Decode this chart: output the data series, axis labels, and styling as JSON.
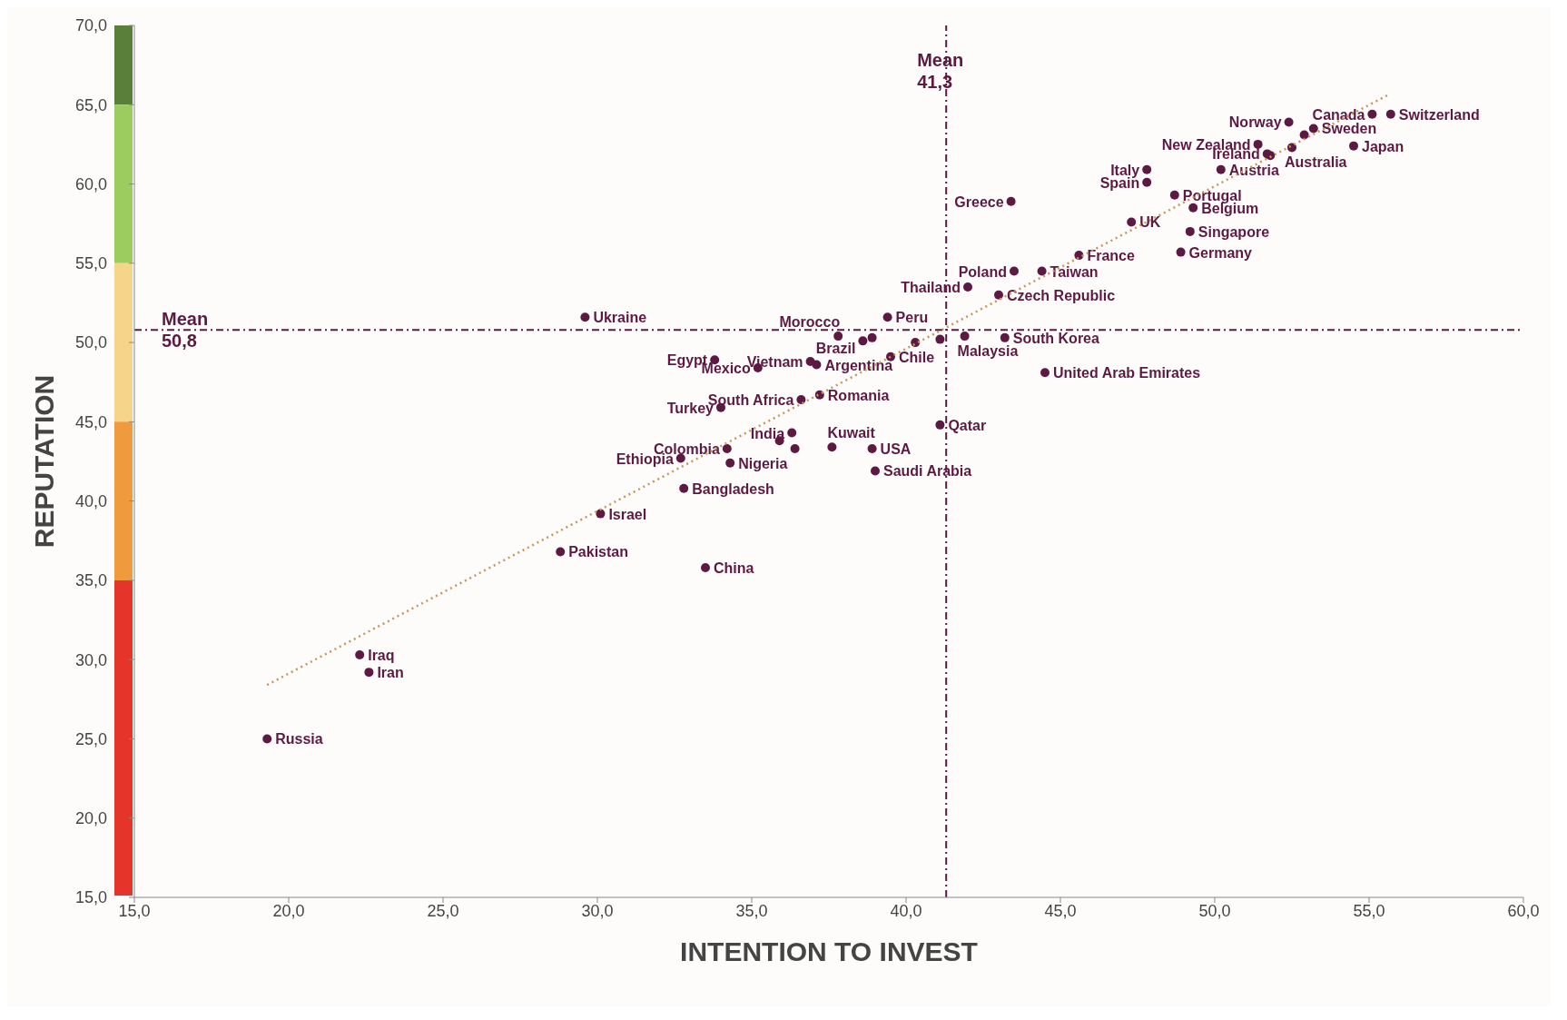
{
  "chart_data": {
    "type": "scatter",
    "xlabel": "INTENTION TO INVEST",
    "ylabel": "REPUTATION",
    "xlim": [
      15,
      60
    ],
    "ylim": [
      15,
      70
    ],
    "xticks": [
      {
        "value": 15,
        "label": "15,0"
      },
      {
        "value": 20,
        "label": "20,0"
      },
      {
        "value": 25,
        "label": "25,0"
      },
      {
        "value": 30,
        "label": "30,0"
      },
      {
        "value": 35,
        "label": "35,0"
      },
      {
        "value": 40,
        "label": "40,0"
      },
      {
        "value": 45,
        "label": "45,0"
      },
      {
        "value": 50,
        "label": "50,0"
      },
      {
        "value": 55,
        "label": "55,0"
      },
      {
        "value": 60,
        "label": "60,0"
      }
    ],
    "yticks": [
      {
        "value": 15,
        "label": "15,0"
      },
      {
        "value": 20,
        "label": "20,0"
      },
      {
        "value": 25,
        "label": "25,0"
      },
      {
        "value": 30,
        "label": "30,0"
      },
      {
        "value": 35,
        "label": "35,0"
      },
      {
        "value": 40,
        "label": "40,0"
      },
      {
        "value": 45,
        "label": "45,0"
      },
      {
        "value": 50,
        "label": "50,0"
      },
      {
        "value": 55,
        "label": "55,0"
      },
      {
        "value": 60,
        "label": "60,0"
      },
      {
        "value": 65,
        "label": "65,0"
      },
      {
        "value": 70,
        "label": "70,0"
      }
    ],
    "grid": false,
    "series": [
      {
        "type": "scatter",
        "color": "#5c1a42",
        "marker": "circle",
        "x": [
          19.3,
          22.3,
          22.6,
          28.8,
          30.1,
          33.5,
          32.8,
          32.7,
          34.2,
          34.3,
          34.0,
          36.6,
          37.2,
          35.9,
          36.3,
          36.4,
          37.6,
          38.9,
          39.0,
          41.1,
          33.8,
          35.2,
          36.9,
          37.1,
          37.8,
          38.6,
          38.9,
          39.4,
          39.5,
          40.3,
          41.1,
          41.9,
          43.2,
          29.6,
          44.5,
          42.0,
          43.0,
          43.5,
          44.4,
          45.6,
          47.3,
          43.4,
          47.8,
          47.8,
          48.7,
          49.3,
          49.2,
          48.9,
          50.2,
          51.4,
          51.7,
          51.8,
          52.5,
          52.4,
          52.9,
          53.2,
          55.1,
          55.7,
          54.5
        ],
        "values": [
          25.0,
          30.3,
          29.2,
          36.8,
          39.2,
          35.8,
          40.8,
          42.7,
          43.3,
          42.4,
          45.9,
          46.4,
          46.7,
          43.8,
          44.3,
          43.3,
          43.4,
          43.3,
          41.9,
          44.8,
          48.9,
          48.4,
          48.8,
          48.6,
          50.4,
          50.1,
          50.3,
          51.6,
          49.1,
          50.0,
          50.2,
          50.4,
          50.3,
          51.6,
          48.1,
          53.5,
          53.0,
          54.5,
          54.5,
          55.5,
          57.6,
          58.9,
          60.9,
          60.1,
          59.3,
          58.5,
          57.0,
          55.7,
          60.9,
          62.5,
          61.9,
          61.8,
          62.3,
          63.9,
          63.1,
          63.5,
          64.4,
          64.4,
          62.4
        ],
        "value_labels": [
          "Russia",
          "Iraq",
          "Iran",
          "Pakistan",
          "Israel",
          "China",
          "Bangladesh",
          "Ethiopia",
          "Colombia",
          "Nigeria",
          "Turkey",
          "South Africa",
          "Romania",
          null,
          "India",
          null,
          "Kuwait",
          "USA",
          "Saudi Arabia",
          "Qatar",
          "Egypt",
          "Mexico",
          "Vietnam",
          "Argentina",
          "Morocco",
          "Brazil",
          null,
          "Peru",
          "Chile",
          null,
          null,
          "Malaysia",
          "South Korea",
          "Ukraine",
          "United Arab Emirates",
          "Thailand",
          "Czech Republic",
          "Poland",
          "Taiwan",
          "France",
          "UK",
          "Greece",
          "Italy",
          "Spain",
          "Portugal",
          "Belgium",
          "Singapore",
          "Germany",
          "Austria",
          "New Zealand",
          "Ireland",
          null,
          "Australia",
          "Norway",
          null,
          "Sweden",
          "Canada",
          "Switzerland",
          "Japan"
        ]
      },
      {
        "type": "line",
        "color": "#c8955a",
        "marker": "none",
        "line_style": "dotted",
        "x": [
          19.3,
          55.6
        ],
        "values": [
          28.4,
          65.6
        ]
      }
    ],
    "ref_lines": [
      {
        "axis": "x",
        "value": 41.3,
        "label": "Mean\n41,3",
        "color": "#5c1a42",
        "line_style": "dashdot"
      },
      {
        "axis": "y",
        "value": 50.8,
        "label": "Mean\n50,8",
        "color": "#5c1a42",
        "line_style": "dashdot"
      }
    ]
  }
}
